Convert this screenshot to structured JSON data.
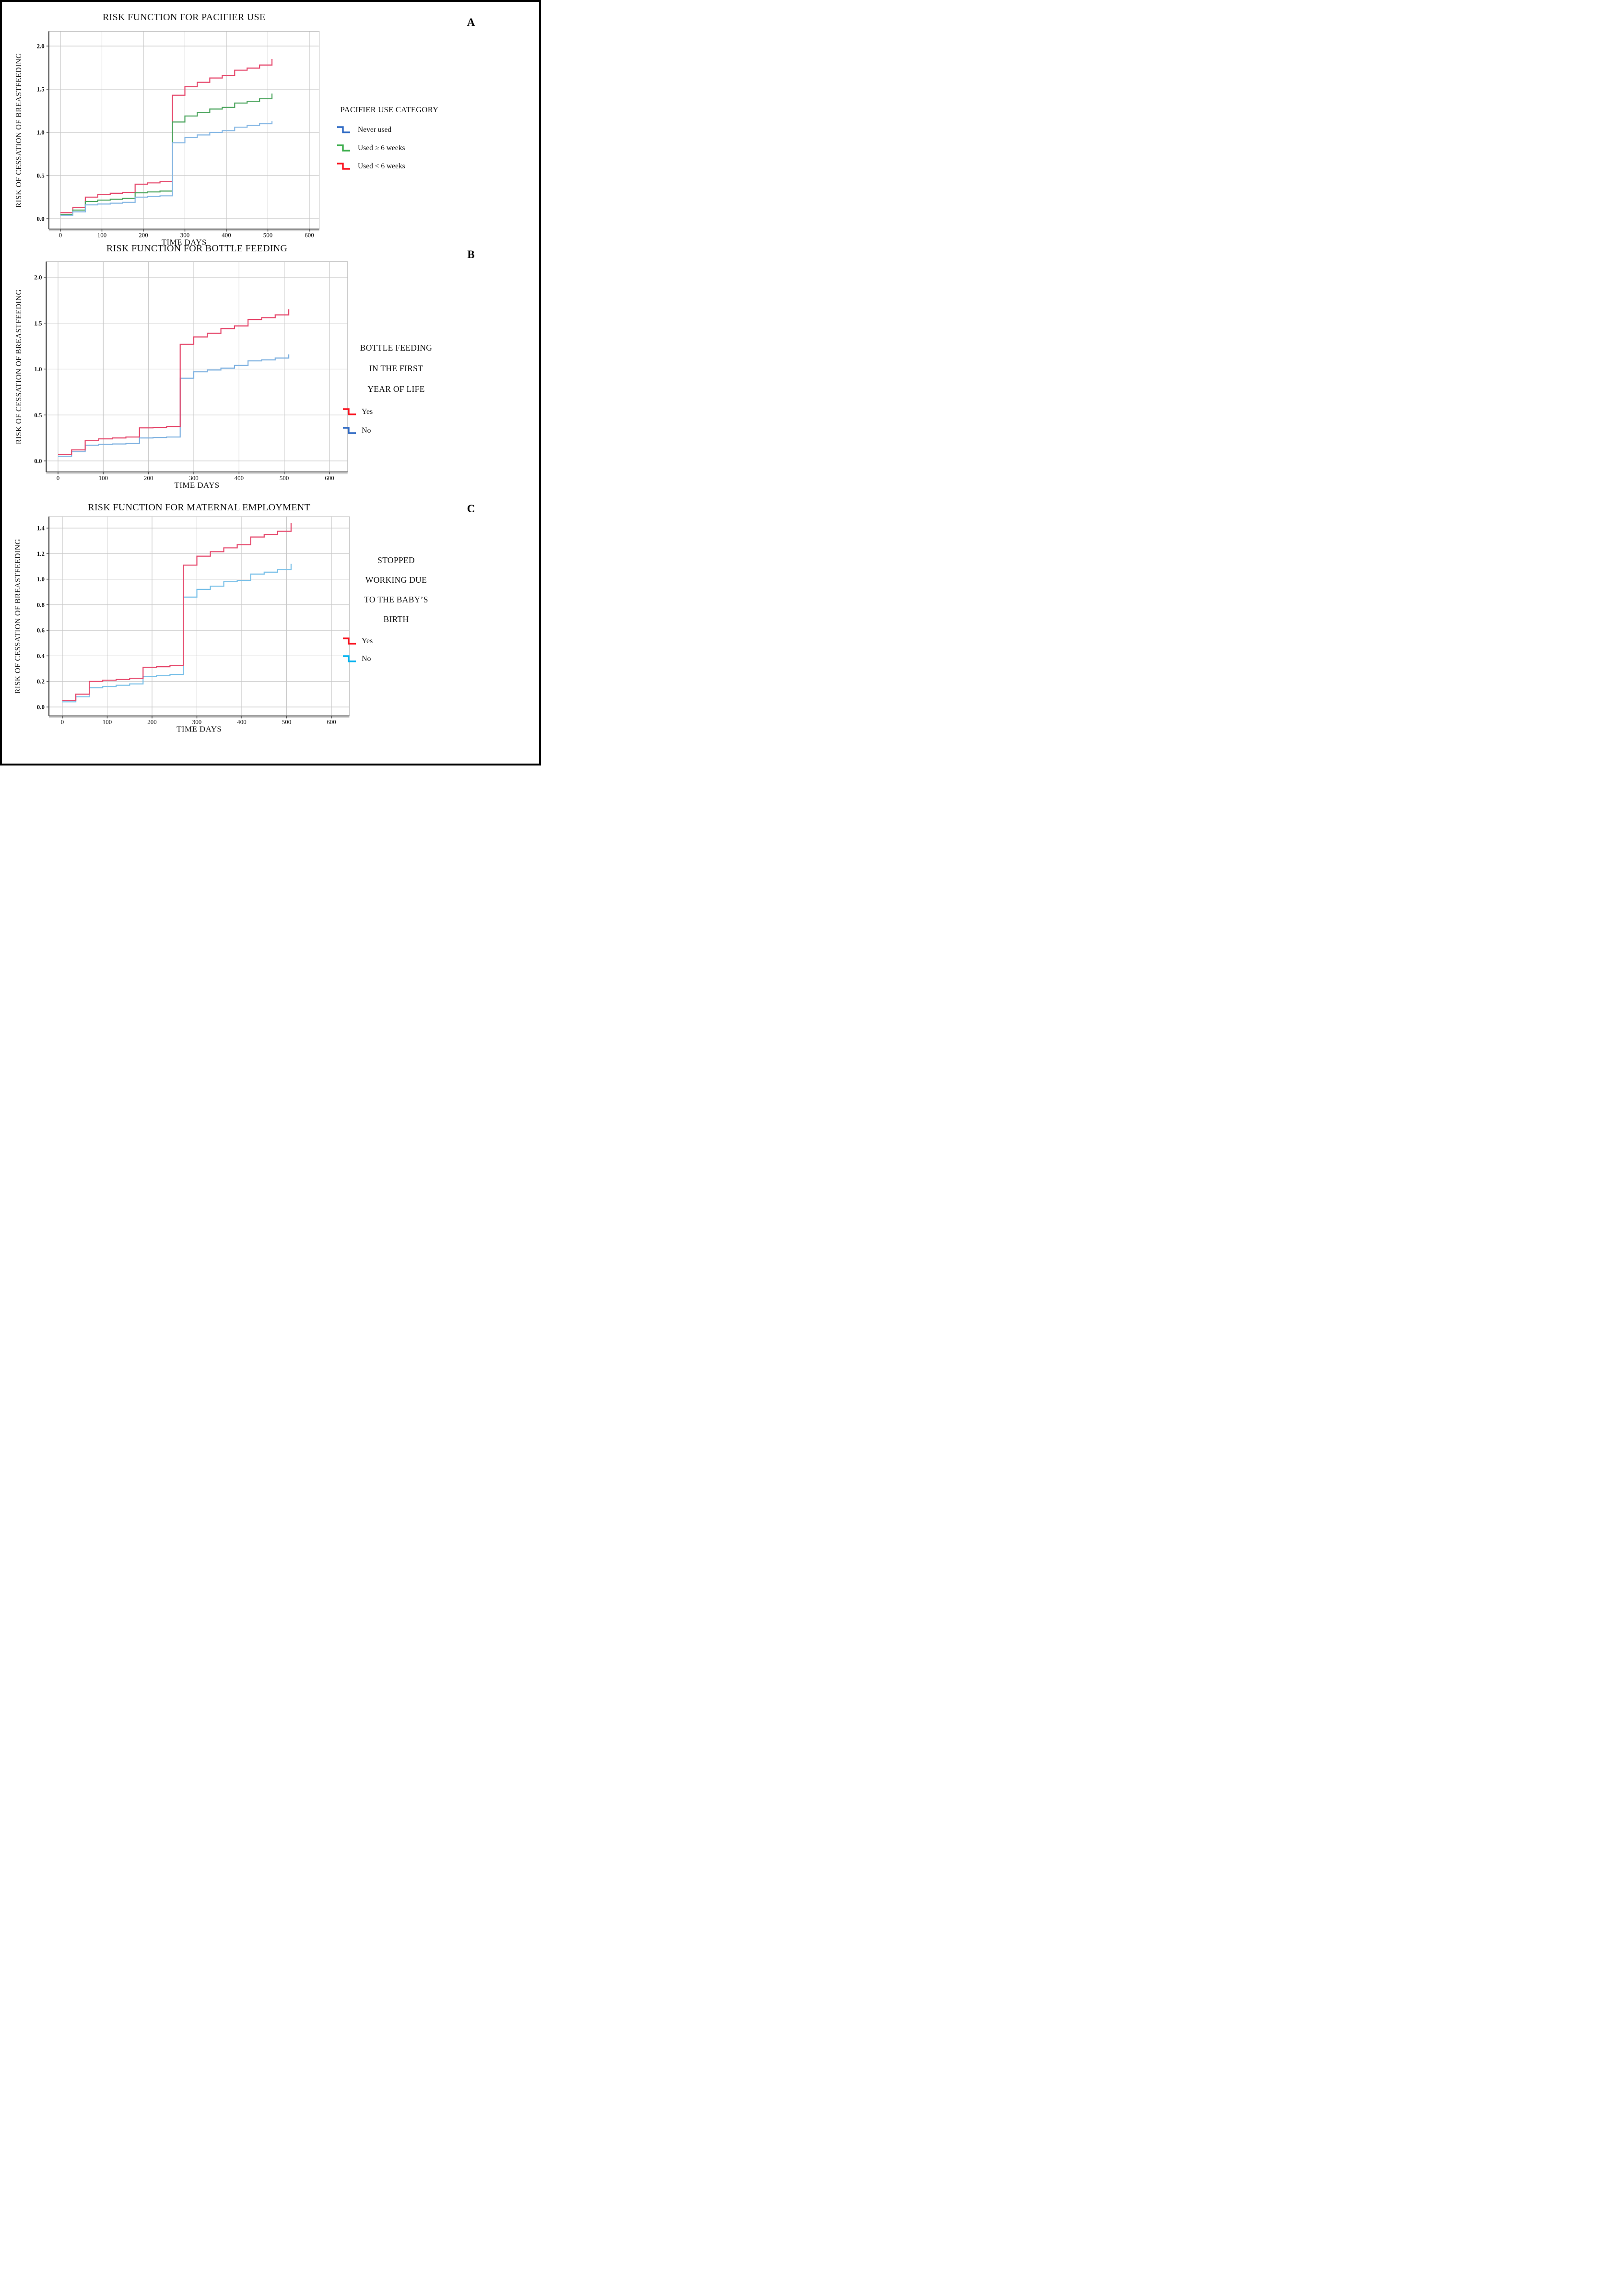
{
  "figure": {
    "panel_letters": [
      "A",
      "B",
      "C"
    ],
    "border_color": "#000000",
    "grid_color": "#c8c8c8",
    "axis_color": "#4a4a4a"
  },
  "chart_data": [
    {
      "panel": "A",
      "type": "line",
      "subtype": "step",
      "title": "RISK FUNCTION FOR PACIFIER USE",
      "xlabel": "TIME DAYS",
      "ylabel": "RISK OF CESSATION OF BREASTFEEDING",
      "xticks": [
        0,
        100,
        200,
        300,
        400,
        500,
        600
      ],
      "yticks": [
        0.0,
        0.5,
        1.0,
        1.5,
        2.0
      ],
      "xlim": [
        -28,
        624
      ],
      "ylim": [
        -0.12,
        2.17
      ],
      "grid": true,
      "legend_position": "right",
      "legend": {
        "title": "PACIFIER USE CATEGORY",
        "entries": [
          {
            "label": "Never used",
            "color": "#2f6ac4"
          },
          {
            "label": "Used ≥ 6 weeks",
            "color": "#3dae4d"
          },
          {
            "label": "Used < 6 weeks",
            "color": "#fa1420"
          }
        ]
      },
      "series": [
        {
          "name": "Never used",
          "color": "#85b7e4",
          "x": [
            0,
            30,
            60,
            90,
            120,
            150,
            180,
            210,
            240,
            270,
            300,
            330,
            360,
            390,
            420,
            450,
            480,
            510
          ],
          "y": [
            0.04,
            0.08,
            0.16,
            0.17,
            0.18,
            0.19,
            0.25,
            0.257,
            0.265,
            0.88,
            0.94,
            0.97,
            1.0,
            1.02,
            1.06,
            1.08,
            1.1,
            1.13
          ]
        },
        {
          "name": "Used ≥ 6 weeks",
          "color": "#4aa45c",
          "x": [
            0,
            30,
            60,
            90,
            120,
            150,
            180,
            210,
            240,
            270,
            300,
            330,
            360,
            390,
            420,
            450,
            480,
            510
          ],
          "y": [
            0.05,
            0.1,
            0.2,
            0.215,
            0.225,
            0.235,
            0.3,
            0.31,
            0.32,
            1.12,
            1.19,
            1.23,
            1.27,
            1.29,
            1.34,
            1.36,
            1.39,
            1.45
          ]
        },
        {
          "name": "Used < 6 weeks",
          "color": "#e5476b",
          "x": [
            0,
            30,
            60,
            90,
            120,
            150,
            180,
            210,
            240,
            270,
            300,
            330,
            360,
            390,
            420,
            450,
            480,
            510
          ],
          "y": [
            0.07,
            0.13,
            0.25,
            0.28,
            0.295,
            0.305,
            0.4,
            0.415,
            0.43,
            1.43,
            1.53,
            1.58,
            1.63,
            1.66,
            1.72,
            1.745,
            1.78,
            1.85
          ]
        }
      ]
    },
    {
      "panel": "B",
      "type": "line",
      "subtype": "step",
      "title": "RISK FUNCTION FOR BOTTLE FEEDING",
      "xlabel": "TIME DAYS",
      "ylabel": "RISK OF CESSATION OF BREASTFEEDING",
      "xticks": [
        0,
        100,
        200,
        300,
        400,
        500,
        600
      ],
      "yticks": [
        0.0,
        0.5,
        1.0,
        1.5,
        2.0
      ],
      "xlim": [
        -26,
        640
      ],
      "ylim": [
        -0.12,
        2.17
      ],
      "grid": true,
      "legend_position": "right",
      "legend": {
        "title": "BOTTLE FEEDING\nIN THE FIRST\nYEAR OF LIFE",
        "entries": [
          {
            "label": "Yes",
            "color": "#fa1420"
          },
          {
            "label": "No",
            "color": "#2f6ac4"
          }
        ]
      },
      "series": [
        {
          "name": "Yes",
          "color": "#e5476b",
          "x": [
            0,
            30,
            60,
            90,
            120,
            150,
            180,
            210,
            240,
            270,
            300,
            330,
            360,
            390,
            420,
            450,
            480,
            510
          ],
          "y": [
            0.07,
            0.12,
            0.22,
            0.24,
            0.25,
            0.26,
            0.36,
            0.365,
            0.375,
            1.27,
            1.35,
            1.39,
            1.44,
            1.47,
            1.54,
            1.56,
            1.59,
            1.65
          ]
        },
        {
          "name": "No",
          "color": "#7eb1e0",
          "x": [
            0,
            30,
            60,
            90,
            120,
            150,
            180,
            210,
            240,
            270,
            300,
            330,
            360,
            390,
            420,
            450,
            480,
            510
          ],
          "y": [
            0.05,
            0.1,
            0.17,
            0.18,
            0.185,
            0.19,
            0.25,
            0.255,
            0.26,
            0.9,
            0.97,
            0.99,
            1.01,
            1.04,
            1.09,
            1.1,
            1.12,
            1.16
          ]
        }
      ]
    },
    {
      "panel": "C",
      "type": "line",
      "subtype": "step",
      "title": "RISK FUNCTION FOR MATERNAL EMPLOYMENT",
      "xlabel": "TIME DAYS",
      "ylabel": "RISK OF CESSATION OF BREASTFEEDING",
      "xticks": [
        0,
        100,
        200,
        300,
        400,
        500,
        600
      ],
      "yticks": [
        0.0,
        0.2,
        0.4,
        0.6,
        0.8,
        1.0,
        1.2,
        1.4
      ],
      "xlim": [
        -30,
        640
      ],
      "ylim": [
        -0.07,
        1.49
      ],
      "grid": true,
      "legend_position": "right",
      "legend": {
        "title": "STOPPED\nWORKING DUE\nTO THE BABY’S\nBIRTH",
        "entries": [
          {
            "label": "Yes",
            "color": "#fa1420"
          },
          {
            "label": "No",
            "color": "#00b2ef"
          }
        ]
      },
      "series": [
        {
          "name": "Yes",
          "color": "#e5476b",
          "x": [
            0,
            30,
            60,
            90,
            120,
            150,
            180,
            210,
            240,
            270,
            300,
            330,
            360,
            390,
            420,
            450,
            480,
            510
          ],
          "y": [
            0.05,
            0.1,
            0.2,
            0.21,
            0.215,
            0.225,
            0.31,
            0.315,
            0.325,
            1.11,
            1.18,
            1.215,
            1.245,
            1.27,
            1.33,
            1.35,
            1.375,
            1.44
          ]
        },
        {
          "name": "No",
          "color": "#79c0e8",
          "x": [
            0,
            30,
            60,
            90,
            120,
            150,
            180,
            210,
            240,
            270,
            300,
            330,
            360,
            390,
            420,
            450,
            480,
            510
          ],
          "y": [
            0.04,
            0.08,
            0.15,
            0.16,
            0.17,
            0.18,
            0.24,
            0.245,
            0.255,
            0.86,
            0.92,
            0.945,
            0.98,
            0.99,
            1.04,
            1.055,
            1.075,
            1.12
          ]
        }
      ]
    }
  ]
}
